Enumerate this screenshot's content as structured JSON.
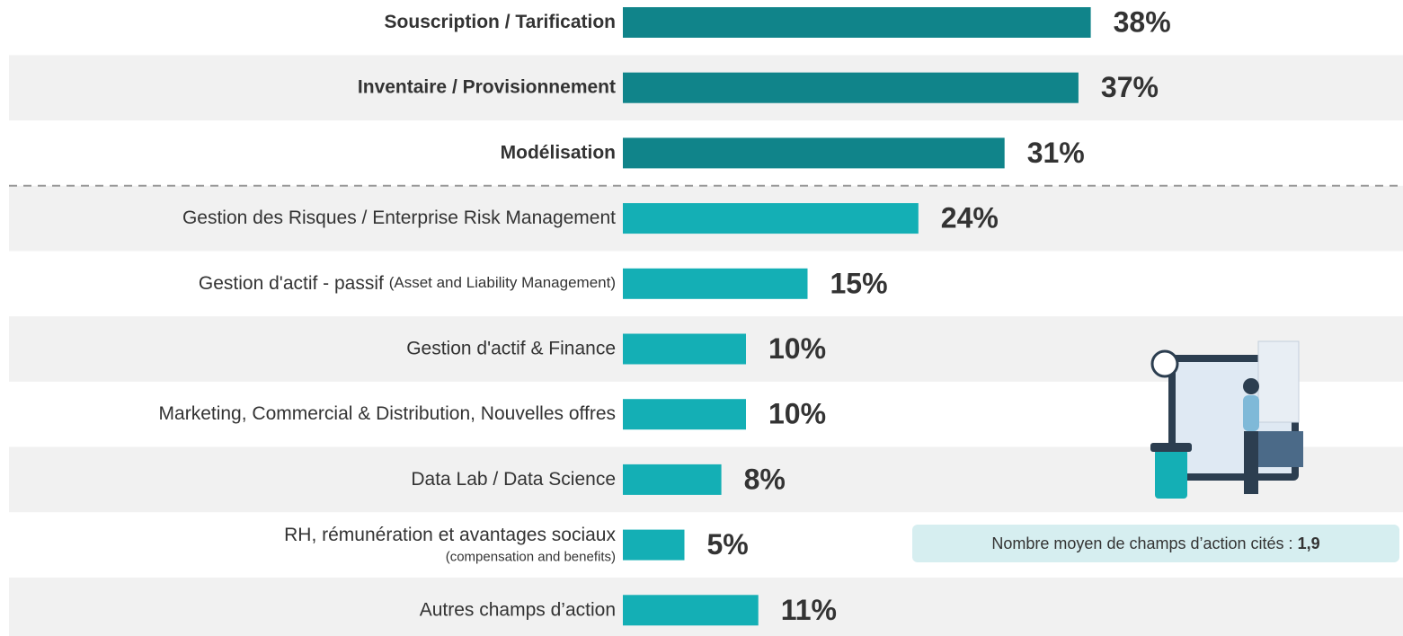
{
  "chart_data": {
    "type": "bar",
    "orientation": "horizontal",
    "categories": [
      "Souscription / Tarification",
      "Inventaire / Provisionnement",
      "Modélisation",
      "Gestion des Risques / Enterprise Risk Management",
      "Gestion d'actif - passif",
      "Gestion d'actif & Finance",
      "Marketing, Commercial & Distribution, Nouvelles offres",
      "Data Lab / Data Science",
      "RH, rémunération et avantages sociaux",
      "Autres champs d’action"
    ],
    "category_notes": [
      null,
      null,
      null,
      null,
      "(Asset and Liability Management)",
      null,
      null,
      null,
      "(compensation and benefits)",
      null
    ],
    "values": [
      38,
      37,
      31,
      24,
      15,
      10,
      10,
      8,
      5,
      11
    ],
    "value_labels": [
      "38%",
      "37%",
      "31%",
      "24%",
      "15%",
      "10%",
      "10%",
      "8%",
      "5%",
      "11%"
    ],
    "colors": [
      "#10848a",
      "#10848a",
      "#10848a",
      "#14afb5",
      "#14afb5",
      "#14afb5",
      "#14afb5",
      "#14afb5",
      "#14afb5",
      "#14afb5"
    ],
    "annotation": {
      "text": "Nombre moyen de champs d’action cités :",
      "value": "1,9"
    }
  }
}
